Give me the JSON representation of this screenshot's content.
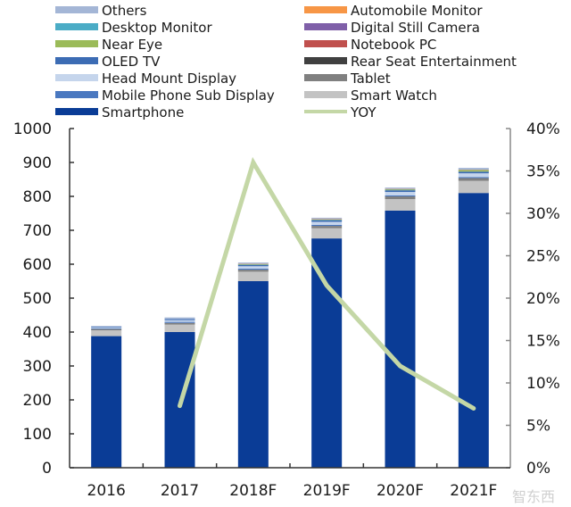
{
  "chart_data": {
    "type": "bar",
    "stacked": true,
    "title": "",
    "xlabel": "",
    "ylabel": "",
    "categories": [
      "2016",
      "2017",
      "2018F",
      "2019F",
      "2020F",
      "2021F"
    ],
    "ylim": [
      0,
      1000
    ],
    "yticks": [
      "0",
      "100",
      "200",
      "300",
      "400",
      "500",
      "600",
      "700",
      "800",
      "900",
      "1000"
    ],
    "ytick_values": [
      0,
      100,
      200,
      300,
      400,
      500,
      600,
      700,
      800,
      900,
      1000
    ],
    "y2lim": [
      0,
      40
    ],
    "y2ticks": [
      "0%",
      "5%",
      "10%",
      "15%",
      "20%",
      "25%",
      "30%",
      "35%",
      "40%"
    ],
    "y2tick_values": [
      0,
      5,
      10,
      15,
      20,
      25,
      30,
      35,
      40
    ],
    "legend_position": "top",
    "grid": false,
    "series": [
      {
        "name": "Smartphone",
        "color": "#0a3c96",
        "values": [
          388,
          400,
          550,
          676,
          758,
          810
        ]
      },
      {
        "name": "Smart Watch",
        "color": "#c3c3c3",
        "values": [
          17,
          22,
          28,
          30,
          34,
          36
        ]
      },
      {
        "name": "Tablet",
        "color": "#808080",
        "values": [
          4,
          5,
          6,
          7,
          8,
          8
        ]
      },
      {
        "name": "Rear Seat Entertainment",
        "color": "#404040",
        "values": [
          0,
          0,
          0,
          0,
          0,
          0
        ]
      },
      {
        "name": "Mobile Phone Sub Display",
        "color": "#4a78c0",
        "values": [
          2,
          3,
          3,
          3,
          3,
          3
        ]
      },
      {
        "name": "Notebook PC",
        "color": "#c0504d",
        "values": [
          0,
          0,
          0,
          0,
          0,
          0
        ]
      },
      {
        "name": "Head Mount Display",
        "color": "#c5d5ec",
        "values": [
          3,
          5,
          7,
          9,
          10,
          11
        ]
      },
      {
        "name": "Digital Still Camera",
        "color": "#7f5fa8",
        "values": [
          0,
          0,
          0,
          0,
          0,
          0
        ]
      },
      {
        "name": "OLED TV",
        "color": "#3c6cb4",
        "values": [
          2,
          3,
          4,
          5,
          5,
          5
        ]
      },
      {
        "name": "Near Eye",
        "color": "#9bbb59",
        "values": [
          0,
          0,
          1,
          1,
          2,
          4
        ]
      },
      {
        "name": "Desktop Monitor",
        "color": "#4bacc6",
        "values": [
          0,
          0,
          1,
          1,
          1,
          1
        ]
      },
      {
        "name": "Automobile Monitor",
        "color": "#f79646",
        "values": [
          0,
          0,
          1,
          1,
          1,
          1
        ]
      },
      {
        "name": "Others",
        "color": "#a4b6d6",
        "values": [
          2,
          5,
          4,
          4,
          4,
          5
        ]
      }
    ],
    "line_series": {
      "name": "YOY",
      "color": "#c4d7a6",
      "axis": "right",
      "unit": "%",
      "values": [
        null,
        7.3,
        36,
        21.5,
        12,
        7
      ]
    }
  },
  "legend": {
    "left": [
      "Others",
      "Desktop Monitor",
      "Near Eye",
      "OLED TV",
      "Head Mount Display",
      "Mobile Phone Sub Display",
      "Smartphone"
    ],
    "right": [
      "Automobile Monitor",
      "Digital Still Camera",
      "Notebook PC",
      "Rear Seat Entertainment",
      "Tablet",
      "Smart Watch",
      "YOY"
    ]
  },
  "watermark": "智东西"
}
